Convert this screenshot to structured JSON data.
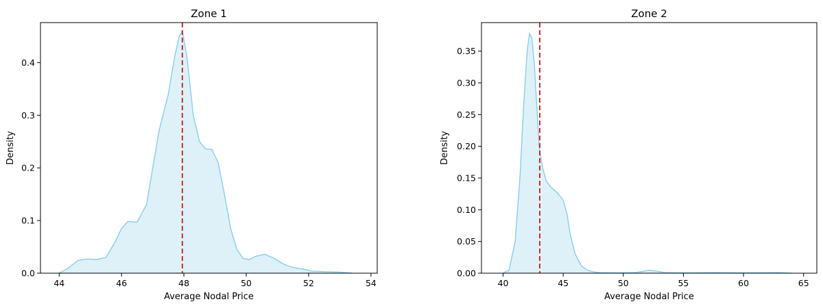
{
  "chart_data": [
    {
      "type": "area",
      "title": "Zone 1",
      "xlabel": "Average Nodal Price",
      "ylabel": "Density",
      "xlim": [
        43.4,
        54.2
      ],
      "ylim": [
        0,
        0.476
      ],
      "xticks": [
        44,
        46,
        48,
        50,
        52,
        54
      ],
      "yticks": [
        0.0,
        0.1,
        0.2,
        0.3,
        0.4
      ],
      "ytick_labels": [
        "0.0",
        "0.1",
        "0.2",
        "0.3",
        "0.4"
      ],
      "grid": false,
      "fill_color": "#87CEEB",
      "vline": {
        "x": 47.95,
        "color": "#d62728",
        "style": "dashed"
      },
      "x": [
        44.0,
        44.3,
        44.6,
        44.9,
        45.2,
        45.5,
        45.8,
        46.0,
        46.2,
        46.5,
        46.8,
        47.0,
        47.2,
        47.5,
        47.7,
        47.85,
        47.95,
        48.1,
        48.3,
        48.5,
        48.7,
        48.9,
        49.1,
        49.3,
        49.5,
        49.7,
        49.9,
        50.1,
        50.3,
        50.6,
        50.9,
        51.2,
        51.5,
        51.8,
        52.1,
        52.5,
        53.0,
        53.4
      ],
      "y": [
        0.0,
        0.01,
        0.024,
        0.027,
        0.026,
        0.03,
        0.06,
        0.085,
        0.098,
        0.097,
        0.13,
        0.2,
        0.27,
        0.34,
        0.41,
        0.45,
        0.46,
        0.41,
        0.3,
        0.25,
        0.236,
        0.235,
        0.21,
        0.15,
        0.085,
        0.045,
        0.028,
        0.026,
        0.032,
        0.036,
        0.028,
        0.017,
        0.011,
        0.008,
        0.004,
        0.003,
        0.002,
        0.0
      ]
    },
    {
      "type": "area",
      "title": "Zone 2",
      "xlabel": "Average Nodal Price",
      "ylabel": "Density",
      "xlim": [
        38.2,
        66.1
      ],
      "ylim": [
        0,
        0.395
      ],
      "xticks": [
        40,
        45,
        50,
        55,
        60,
        65
      ],
      "yticks": [
        0.0,
        0.05,
        0.1,
        0.15,
        0.2,
        0.25,
        0.3,
        0.35
      ],
      "ytick_labels": [
        "0.00",
        "0.05",
        "0.10",
        "0.15",
        "0.20",
        "0.25",
        "0.30",
        "0.35"
      ],
      "grid": false,
      "fill_color": "#87CEEB",
      "vline": {
        "x": 43.05,
        "color": "#d62728",
        "style": "dashed"
      },
      "x": [
        40.0,
        40.5,
        41.0,
        41.4,
        41.7,
        42.0,
        42.2,
        42.4,
        42.6,
        42.8,
        43.0,
        43.3,
        43.6,
        44.0,
        44.5,
        45.0,
        45.3,
        45.6,
        46.0,
        46.5,
        47.0,
        47.5,
        48.0,
        49.0,
        50.0,
        51.0,
        51.7,
        52.2,
        52.8,
        53.5,
        55.0,
        57.5,
        60.0,
        63.0,
        64.0
      ],
      "y": [
        0.0,
        0.005,
        0.05,
        0.15,
        0.26,
        0.35,
        0.378,
        0.37,
        0.33,
        0.265,
        0.2,
        0.165,
        0.145,
        0.135,
        0.127,
        0.115,
        0.095,
        0.06,
        0.03,
        0.012,
        0.005,
        0.002,
        0.001,
        0.0005,
        0.0005,
        0.001,
        0.003,
        0.005,
        0.003,
        0.001,
        0.0005,
        0.001,
        0.0005,
        0.001,
        0.0
      ]
    }
  ]
}
